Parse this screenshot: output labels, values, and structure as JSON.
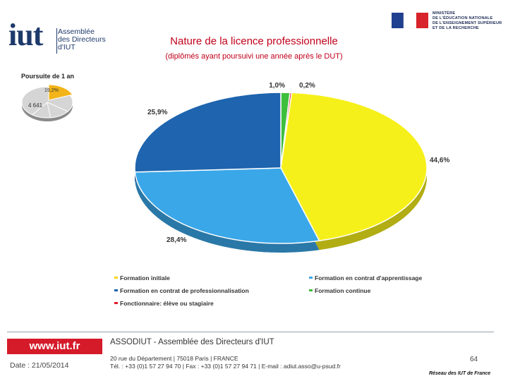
{
  "header": {
    "logo_text": "iut",
    "org_lines": [
      "Assemblée",
      "des Directeurs",
      "d'IUT"
    ],
    "ministry_lines": [
      "MINISTÈRE",
      "DE L'ÉDUCATION NATIONALE",
      "DE L'ENSEIGNEMENT SUPÉRIEUR",
      "ET DE LA RECHERCHE"
    ]
  },
  "chart_data": {
    "type": "pie",
    "title": "Nature de la licence professionnelle",
    "subtitle": "(diplômés ayant poursuivi une année après le DUT)",
    "slices": [
      {
        "label": "Formation continue",
        "value": 1.0,
        "value_label": "1,0%",
        "color": "#3dbf3d"
      },
      {
        "label": "Fonctionnaire: élève ou stagiaire",
        "value": 0.2,
        "value_label": "0,2%",
        "color": "#e0202a"
      },
      {
        "label": "Formation initiale",
        "value": 44.6,
        "value_label": "44,6%",
        "color": "#f6f01a"
      },
      {
        "label": "Formation en contrat d'apprentissage",
        "value": 28.4,
        "value_label": "28,4%",
        "color": "#3aa7e8"
      },
      {
        "label": "Formation en contrat de professionnalisation",
        "value": 25.9,
        "value_label": "25,9%",
        "color": "#1e64ae"
      }
    ],
    "legend": [
      {
        "label": "Formation initiale",
        "color": "#f6d81a"
      },
      {
        "label": "Formation en contrat d'apprentissage",
        "color": "#3aa7e8"
      },
      {
        "label": "Formation en contrat de professionnalisation",
        "color": "#1e64ae"
      },
      {
        "label": "Formation continue",
        "color": "#3dbf3d"
      },
      {
        "label": "Fonctionnaire: élève ou stagiaire",
        "color": "#e0202a"
      }
    ],
    "legend_position": "bottom"
  },
  "inset_chart": {
    "type": "pie",
    "title": "Poursuite de 1 an",
    "highlight_label": "19,2%",
    "total_label": "4 641"
  },
  "footer": {
    "url": "www.iut.fr",
    "date": "Date : 21/05/2014",
    "assoc": "ASSODIUT - Assemblée des Directeurs d'IUT",
    "address_1": "20 rue du Département | 75018 Paris | FRANCE",
    "address_2": "Tél. : +33 (0)1 57 27 94 70 | Fax : +33 (0)1 57 27 94 71 | E-mail : adiut.asso@u-psud.fr",
    "page_number": "64",
    "network": "Réseau des IUT de France"
  }
}
